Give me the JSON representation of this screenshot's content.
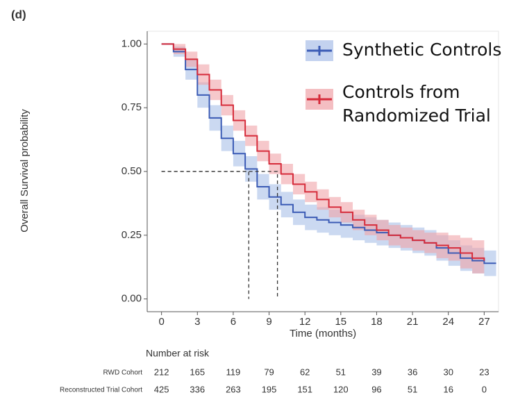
{
  "chart_data": {
    "type": "km",
    "panel_label": "(d)",
    "y_label": "Overall Survival probability",
    "x_label": "Time (months)",
    "xlim": [
      -1.2,
      28.2
    ],
    "ylim": [
      -0.05,
      1.05
    ],
    "xticks": [
      0,
      3,
      6,
      9,
      12,
      15,
      18,
      21,
      24,
      27
    ],
    "yticks": [
      {
        "value": 0,
        "label": "0.00"
      },
      {
        "value": 0.25,
        "label": "0.25"
      },
      {
        "value": 0.5,
        "label": "0.50"
      },
      {
        "value": 0.75,
        "label": "0.75"
      },
      {
        "value": 1,
        "label": "1.00"
      }
    ],
    "legend": "top-right",
    "series": [
      {
        "name": "Synthetic Controls",
        "color": "#3b5bb5",
        "band_color": "#a9bfe8",
        "x": [
          0,
          1,
          2,
          3,
          4,
          5,
          6,
          7,
          8,
          9,
          10,
          11,
          12,
          13,
          14,
          15,
          16,
          17,
          18,
          19,
          20,
          21,
          22,
          23,
          24,
          25,
          26,
          27,
          28
        ],
        "values": [
          1.0,
          0.97,
          0.9,
          0.8,
          0.71,
          0.63,
          0.57,
          0.51,
          0.44,
          0.4,
          0.37,
          0.34,
          0.32,
          0.31,
          0.3,
          0.29,
          0.28,
          0.27,
          0.26,
          0.25,
          0.24,
          0.23,
          0.22,
          0.2,
          0.18,
          0.16,
          0.15,
          0.14,
          0.14
        ],
        "lower": [
          1.0,
          0.95,
          0.86,
          0.75,
          0.66,
          0.58,
          0.52,
          0.46,
          0.39,
          0.35,
          0.32,
          0.29,
          0.27,
          0.26,
          0.25,
          0.24,
          0.23,
          0.22,
          0.21,
          0.2,
          0.19,
          0.18,
          0.17,
          0.15,
          0.13,
          0.11,
          0.1,
          0.09,
          0.09
        ],
        "upper": [
          1.0,
          0.99,
          0.94,
          0.85,
          0.76,
          0.68,
          0.62,
          0.56,
          0.49,
          0.45,
          0.42,
          0.39,
          0.37,
          0.36,
          0.35,
          0.34,
          0.33,
          0.32,
          0.31,
          0.3,
          0.29,
          0.28,
          0.27,
          0.25,
          0.23,
          0.21,
          0.2,
          0.19,
          0.19
        ]
      },
      {
        "name": "Controls from Randomized Trial",
        "color": "#d62b3a",
        "band_color": "#f0a3a8",
        "x": [
          0,
          1,
          2,
          3,
          4,
          5,
          6,
          7,
          8,
          9,
          10,
          11,
          12,
          13,
          14,
          15,
          16,
          17,
          18,
          19,
          20,
          21,
          22,
          23,
          24,
          25,
          26,
          27
        ],
        "values": [
          1.0,
          0.98,
          0.94,
          0.88,
          0.82,
          0.76,
          0.7,
          0.64,
          0.58,
          0.53,
          0.49,
          0.45,
          0.42,
          0.39,
          0.36,
          0.34,
          0.31,
          0.29,
          0.27,
          0.25,
          0.24,
          0.23,
          0.22,
          0.21,
          0.2,
          0.18,
          0.16,
          0.15
        ],
        "lower": [
          1.0,
          0.96,
          0.91,
          0.84,
          0.78,
          0.72,
          0.66,
          0.6,
          0.54,
          0.49,
          0.45,
          0.41,
          0.38,
          0.35,
          0.32,
          0.3,
          0.27,
          0.25,
          0.23,
          0.21,
          0.2,
          0.19,
          0.18,
          0.16,
          0.15,
          0.12,
          0.1,
          0.09
        ],
        "upper": [
          1.0,
          1.0,
          0.97,
          0.92,
          0.86,
          0.8,
          0.74,
          0.68,
          0.62,
          0.57,
          0.53,
          0.49,
          0.46,
          0.43,
          0.4,
          0.38,
          0.35,
          0.33,
          0.31,
          0.29,
          0.28,
          0.27,
          0.26,
          0.26,
          0.25,
          0.24,
          0.23,
          0.22
        ]
      }
    ],
    "median_lines": [
      {
        "x": 7.3,
        "y": 0.5
      },
      {
        "x": 9.7,
        "y": 0.5
      }
    ],
    "risk_table": {
      "title": "Number at risk",
      "rows": [
        {
          "name": "RWD Cohort",
          "color": "#3b5bb5",
          "values": [
            212,
            165,
            119,
            79,
            62,
            51,
            39,
            36,
            30,
            23
          ]
        },
        {
          "name": "Reconstructed Trial Cohort",
          "color": "#d62b3a",
          "values": [
            425,
            336,
            263,
            195,
            151,
            120,
            96,
            51,
            16,
            0
          ]
        }
      ]
    }
  }
}
